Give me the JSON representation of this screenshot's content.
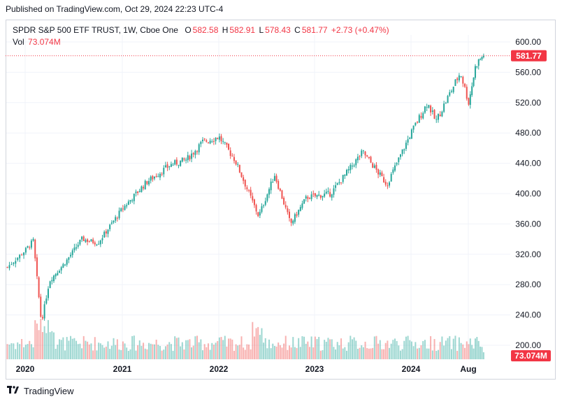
{
  "header": {
    "published": "Published on TradingView.com, Oct 29, 2024 22:23 UTC-4"
  },
  "legend": {
    "symbol": "SPDR S&P 500 ETF TRUST, 1W, Cboe One",
    "o_label": "O",
    "o_value": "582.58",
    "h_label": "H",
    "h_value": "582.91",
    "l_label": "L",
    "l_value": "578.43",
    "c_label": "C",
    "c_value": "581.77",
    "change": "+2.73 (+0.47%)",
    "vol_label": "Vol",
    "vol_value": "73.074M"
  },
  "price_tag": "581.77",
  "volume_tag": "73.074M",
  "footer": {
    "brand": "TradingView",
    "logo_icon": "tradingview-logo-icon"
  },
  "colors": {
    "up": "#26a69a",
    "down": "#ef5350",
    "label_red": "#f23645",
    "grid": "#f0f3fa"
  },
  "chart_data": {
    "type": "candlestick",
    "symbol": "SPDR S&P 500 ETF TRUST",
    "interval": "1W",
    "exchange": "Cboe One",
    "y_ticks": [
      "600.00",
      "560.00",
      "520.00",
      "480.00",
      "440.00",
      "400.00",
      "360.00",
      "320.00",
      "280.00",
      "240.00",
      "200.00"
    ],
    "x_ticks": [
      "2020",
      "2021",
      "2022",
      "2023",
      "2024",
      "Aug"
    ],
    "ylim": [
      200,
      600
    ],
    "last_price": 581.77,
    "last_volume": "73.074M",
    "price_path": [
      [
        "2019-11",
        303
      ],
      [
        "2020-01",
        325
      ],
      [
        "2020-02",
        338
      ],
      [
        "2020-03",
        230
      ],
      [
        "2020-04",
        285
      ],
      [
        "2020-06",
        310
      ],
      [
        "2020-08",
        340
      ],
      [
        "2020-10",
        335
      ],
      [
        "2021-01",
        380
      ],
      [
        "2021-04",
        415
      ],
      [
        "2021-07",
        438
      ],
      [
        "2021-09",
        445
      ],
      [
        "2021-11",
        468
      ],
      [
        "2022-01",
        475
      ],
      [
        "2022-03",
        445
      ],
      [
        "2022-04",
        420
      ],
      [
        "2022-06",
        370
      ],
      [
        "2022-08",
        425
      ],
      [
        "2022-10",
        360
      ],
      [
        "2022-12",
        395
      ],
      [
        "2023-03",
        400
      ],
      [
        "2023-07",
        455
      ],
      [
        "2023-10",
        412
      ],
      [
        "2024-01",
        480
      ],
      [
        "2024-03",
        520
      ],
      [
        "2024-04",
        495
      ],
      [
        "2024-07",
        560
      ],
      [
        "2024-08",
        520
      ],
      [
        "2024-09",
        570
      ],
      [
        "2024-10",
        581.77
      ]
    ]
  }
}
